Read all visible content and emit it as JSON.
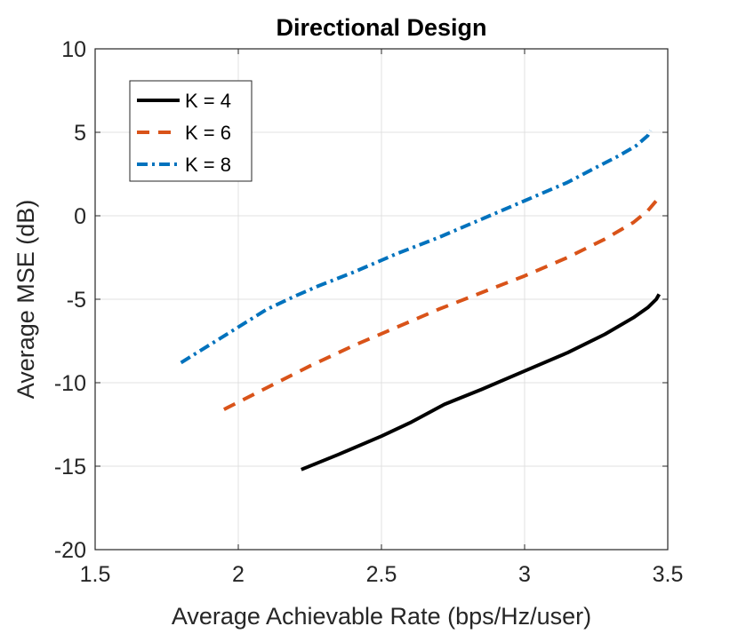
{
  "chart_data": {
    "type": "line",
    "title": "Directional Design",
    "xlabel": "Average Achievable Rate (bps/Hz/user)",
    "ylabel": "Average MSE (dB)",
    "xlim": [
      1.5,
      3.5
    ],
    "ylim": [
      -20,
      10
    ],
    "xticks": [
      1.5,
      2,
      2.5,
      3,
      3.5
    ],
    "xtick_labels": [
      "1.5",
      "2",
      "2.5",
      "3",
      "3.5"
    ],
    "yticks": [
      -20,
      -15,
      -10,
      -5,
      0,
      5,
      10
    ],
    "ytick_labels": [
      "-20",
      "-15",
      "-10",
      "-5",
      "0",
      "5",
      "10"
    ],
    "grid": true,
    "legend_position": "top-left",
    "series": [
      {
        "name": "K = 4",
        "color": "#000000",
        "style": "solid",
        "x": [
          2.22,
          2.35,
          2.5,
          2.6,
          2.72,
          2.85,
          3.0,
          3.15,
          3.28,
          3.38,
          3.43,
          3.46,
          3.47
        ],
        "y": [
          -15.2,
          -14.3,
          -13.2,
          -12.4,
          -11.3,
          -10.4,
          -9.3,
          -8.2,
          -7.1,
          -6.1,
          -5.5,
          -5.0,
          -4.7
        ]
      },
      {
        "name": "K = 6",
        "color": "#D95319",
        "style": "dashed",
        "x": [
          1.95,
          2.1,
          2.25,
          2.4,
          2.55,
          2.7,
          2.85,
          3.0,
          3.15,
          3.28,
          3.38,
          3.43,
          3.46,
          3.47
        ],
        "y": [
          -11.6,
          -10.3,
          -9.0,
          -7.8,
          -6.7,
          -5.6,
          -4.6,
          -3.6,
          -2.5,
          -1.4,
          -0.4,
          0.3,
          0.9,
          1.1
        ]
      },
      {
        "name": "K = 8",
        "color": "#0072BD",
        "style": "dashdot",
        "x": [
          1.8,
          1.95,
          2.1,
          2.2,
          2.28,
          2.4,
          2.55,
          2.7,
          2.85,
          3.0,
          3.15,
          3.25,
          3.33,
          3.39,
          3.43,
          3.44
        ],
        "y": [
          -8.8,
          -7.2,
          -5.6,
          -4.8,
          -4.2,
          -3.4,
          -2.3,
          -1.3,
          -0.2,
          0.9,
          2.0,
          2.9,
          3.6,
          4.2,
          4.8,
          5.1
        ]
      }
    ]
  }
}
